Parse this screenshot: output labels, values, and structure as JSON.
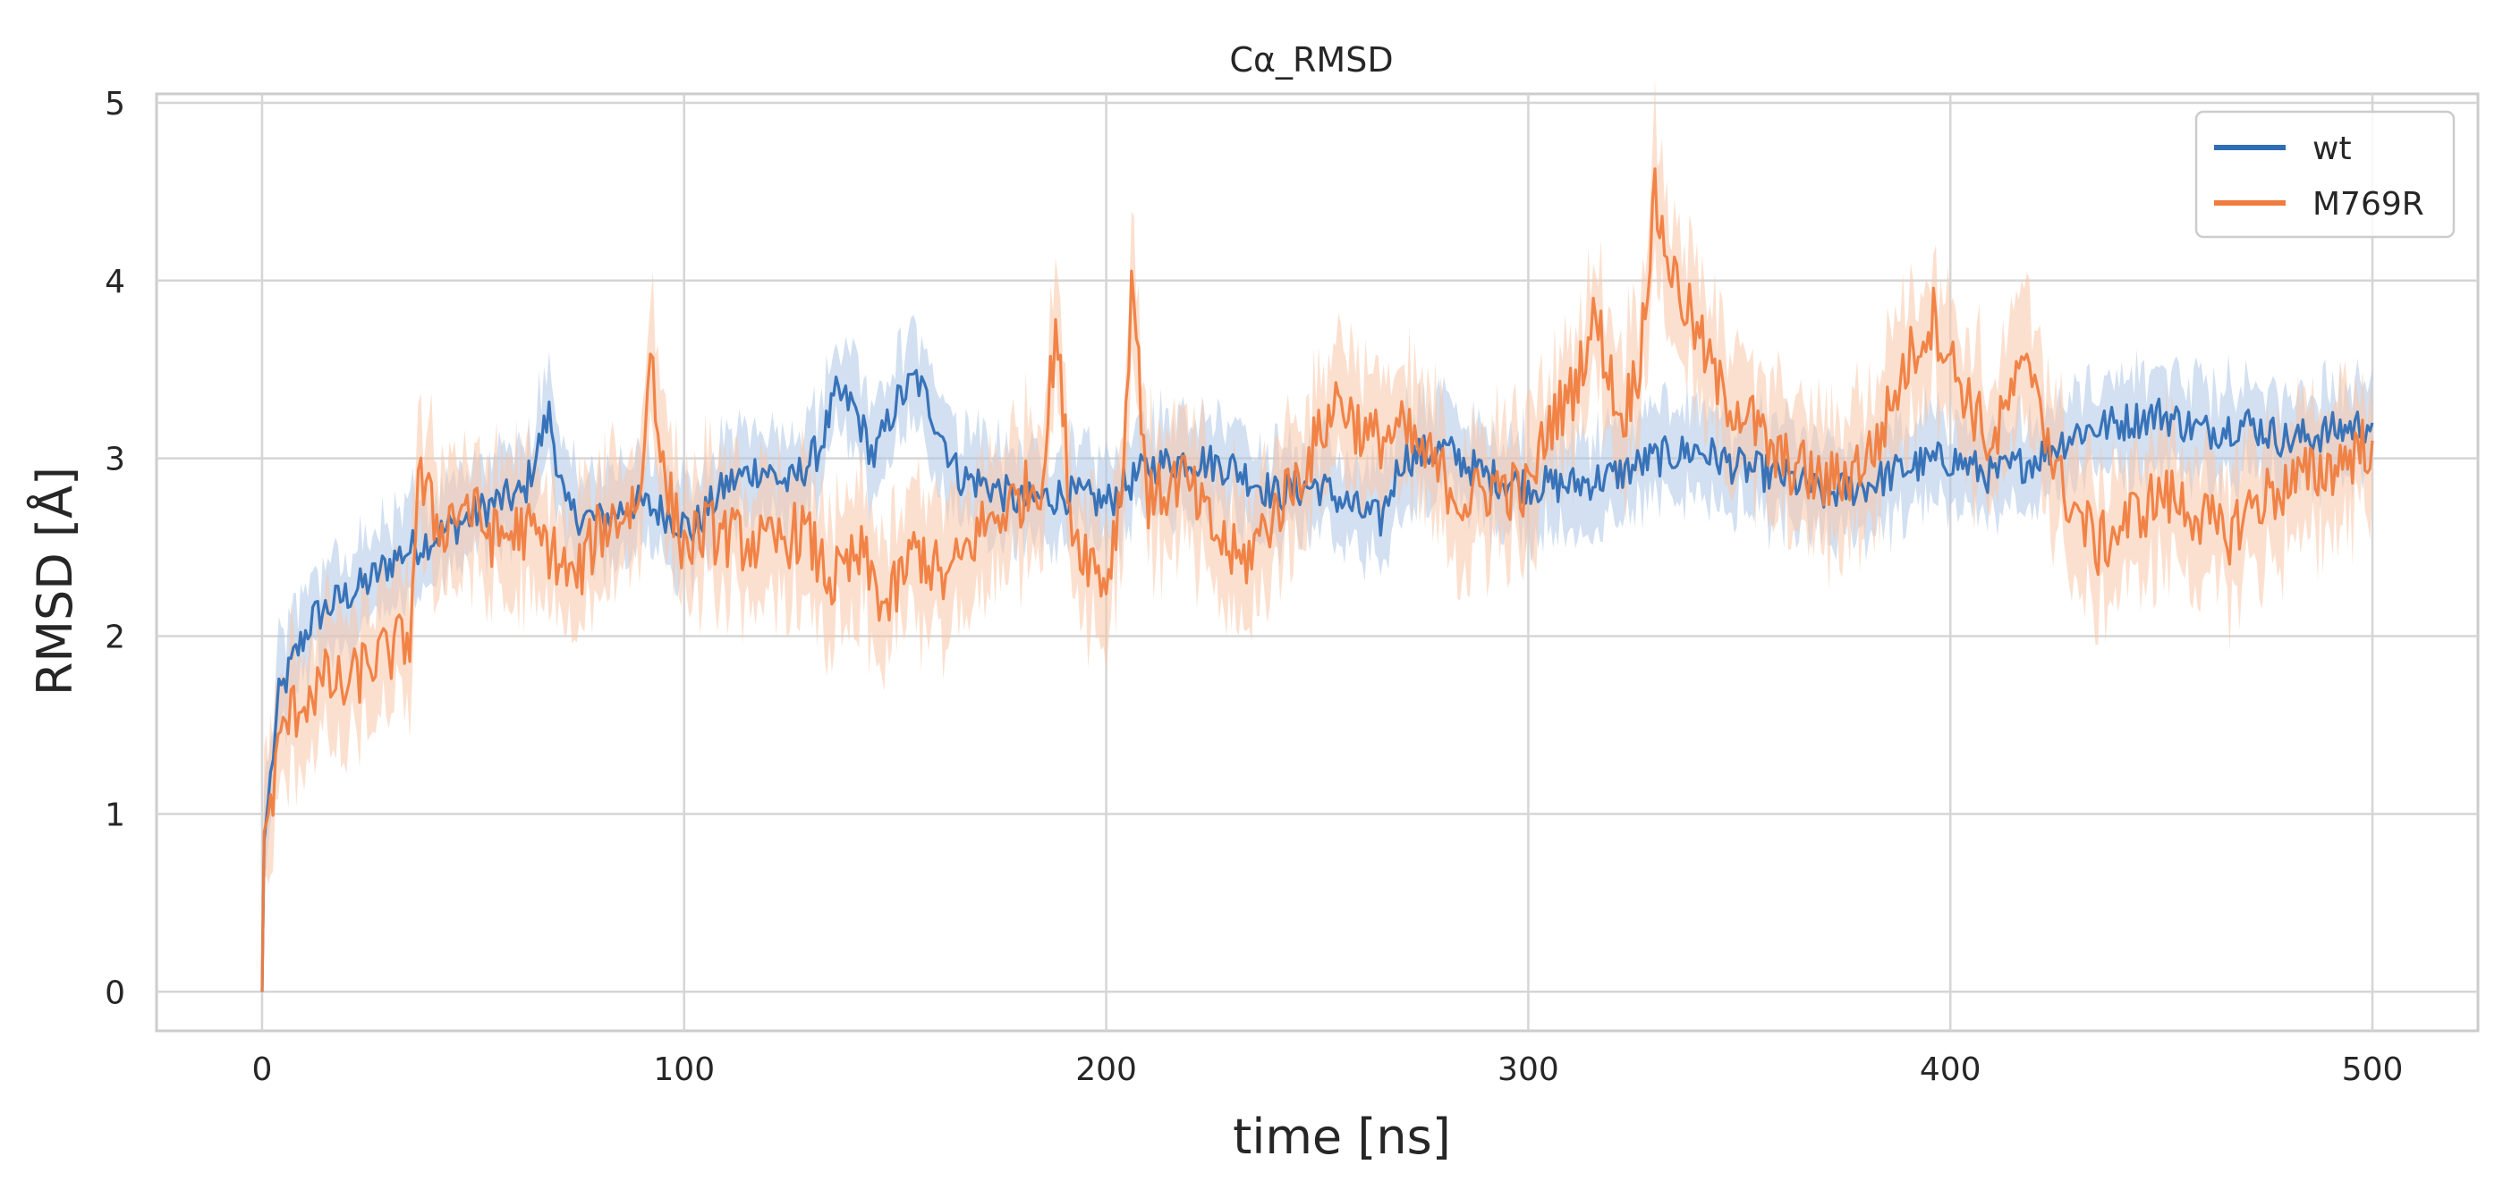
{
  "chart_data": {
    "type": "line",
    "title": "Cα_RMSD",
    "xlabel": "time [ns]",
    "ylabel": "RMSD [Å]",
    "xlim": [
      -25,
      525
    ],
    "ylim": [
      -0.22,
      5.05
    ],
    "xticks": [
      0,
      100,
      200,
      300,
      400,
      500
    ],
    "yticks": [
      0,
      1,
      2,
      3,
      4,
      5
    ],
    "grid": true,
    "legend_position": "top-right",
    "series": [
      {
        "name": "wt",
        "color": "#2f6db5",
        "band_color": "#adc6e5",
        "band_halfwidth": 0.25,
        "points": [
          [
            0,
            0.0
          ],
          [
            0.5,
            0.85
          ],
          [
            2,
            1.2
          ],
          [
            4,
            1.65
          ],
          [
            8,
            1.9
          ],
          [
            12,
            2.1
          ],
          [
            18,
            2.2
          ],
          [
            25,
            2.3
          ],
          [
            32,
            2.45
          ],
          [
            40,
            2.55
          ],
          [
            48,
            2.65
          ],
          [
            55,
            2.75
          ],
          [
            62,
            2.8
          ],
          [
            68,
            3.25
          ],
          [
            72,
            2.7
          ],
          [
            80,
            2.65
          ],
          [
            88,
            2.75
          ],
          [
            95,
            2.7
          ],
          [
            102,
            2.6
          ],
          [
            110,
            2.85
          ],
          [
            118,
            2.95
          ],
          [
            125,
            2.85
          ],
          [
            132,
            3.05
          ],
          [
            136,
            3.35
          ],
          [
            140,
            3.3
          ],
          [
            145,
            3.0
          ],
          [
            150,
            3.3
          ],
          [
            155,
            3.45
          ],
          [
            160,
            3.2
          ],
          [
            165,
            2.9
          ],
          [
            172,
            2.85
          ],
          [
            180,
            2.75
          ],
          [
            190,
            2.8
          ],
          [
            200,
            2.75
          ],
          [
            210,
            2.95
          ],
          [
            220,
            3.0
          ],
          [
            230,
            2.95
          ],
          [
            240,
            2.8
          ],
          [
            250,
            2.85
          ],
          [
            260,
            2.7
          ],
          [
            265,
            2.65
          ],
          [
            270,
            3.0
          ],
          [
            280,
            3.05
          ],
          [
            290,
            2.9
          ],
          [
            300,
            2.85
          ],
          [
            310,
            2.85
          ],
          [
            320,
            2.9
          ],
          [
            330,
            3.0
          ],
          [
            340,
            3.05
          ],
          [
            350,
            2.95
          ],
          [
            360,
            2.9
          ],
          [
            370,
            2.8
          ],
          [
            380,
            2.85
          ],
          [
            390,
            2.95
          ],
          [
            400,
            3.0
          ],
          [
            410,
            2.9
          ],
          [
            420,
            3.0
          ],
          [
            430,
            3.15
          ],
          [
            440,
            3.2
          ],
          [
            450,
            3.25
          ],
          [
            460,
            3.15
          ],
          [
            470,
            3.2
          ],
          [
            480,
            3.1
          ],
          [
            490,
            3.15
          ],
          [
            500,
            3.2
          ]
        ]
      },
      {
        "name": "M769R",
        "color": "#f07d3f",
        "band_color": "#f9c7a8",
        "band_halfwidth": 0.35,
        "points": [
          [
            0,
            0.0
          ],
          [
            0.5,
            0.9
          ],
          [
            2,
            1.05
          ],
          [
            5,
            1.5
          ],
          [
            10,
            1.65
          ],
          [
            15,
            1.75
          ],
          [
            20,
            1.7
          ],
          [
            25,
            1.85
          ],
          [
            30,
            1.9
          ],
          [
            35,
            2.0
          ],
          [
            37,
            2.9
          ],
          [
            42,
            2.6
          ],
          [
            48,
            2.75
          ],
          [
            55,
            2.55
          ],
          [
            62,
            2.6
          ],
          [
            68,
            2.5
          ],
          [
            74,
            2.3
          ],
          [
            80,
            2.6
          ],
          [
            86,
            2.7
          ],
          [
            90,
            2.8
          ],
          [
            92,
            3.7
          ],
          [
            95,
            2.9
          ],
          [
            100,
            2.5
          ],
          [
            105,
            2.6
          ],
          [
            112,
            2.55
          ],
          [
            120,
            2.5
          ],
          [
            128,
            2.6
          ],
          [
            135,
            2.3
          ],
          [
            142,
            2.45
          ],
          [
            148,
            2.15
          ],
          [
            155,
            2.5
          ],
          [
            162,
            2.3
          ],
          [
            170,
            2.6
          ],
          [
            178,
            2.75
          ],
          [
            185,
            2.9
          ],
          [
            188,
            3.75
          ],
          [
            192,
            2.6
          ],
          [
            200,
            2.3
          ],
          [
            204,
            2.9
          ],
          [
            206,
            4.05
          ],
          [
            210,
            2.75
          ],
          [
            218,
            2.9
          ],
          [
            225,
            2.6
          ],
          [
            232,
            2.4
          ],
          [
            240,
            2.7
          ],
          [
            248,
            3.0
          ],
          [
            255,
            3.35
          ],
          [
            262,
            3.1
          ],
          [
            270,
            3.15
          ],
          [
            278,
            2.95
          ],
          [
            285,
            2.75
          ],
          [
            292,
            2.85
          ],
          [
            300,
            2.8
          ],
          [
            305,
            3.2
          ],
          [
            310,
            3.35
          ],
          [
            316,
            3.8
          ],
          [
            322,
            3.2
          ],
          [
            326,
            3.5
          ],
          [
            330,
            4.45
          ],
          [
            334,
            4.05
          ],
          [
            340,
            3.7
          ],
          [
            346,
            3.35
          ],
          [
            352,
            3.25
          ],
          [
            358,
            3.0
          ],
          [
            364,
            2.95
          ],
          [
            370,
            2.85
          ],
          [
            375,
            2.9
          ],
          [
            382,
            3.05
          ],
          [
            390,
            3.55
          ],
          [
            396,
            3.8
          ],
          [
            400,
            3.55
          ],
          [
            405,
            3.3
          ],
          [
            410,
            3.05
          ],
          [
            415,
            3.4
          ],
          [
            420,
            3.5
          ],
          [
            425,
            2.9
          ],
          [
            430,
            2.7
          ],
          [
            435,
            2.5
          ],
          [
            442,
            2.65
          ],
          [
            450,
            2.8
          ],
          [
            458,
            2.7
          ],
          [
            465,
            2.55
          ],
          [
            472,
            2.75
          ],
          [
            480,
            2.85
          ],
          [
            490,
            2.95
          ],
          [
            500,
            3.1
          ]
        ]
      }
    ]
  }
}
